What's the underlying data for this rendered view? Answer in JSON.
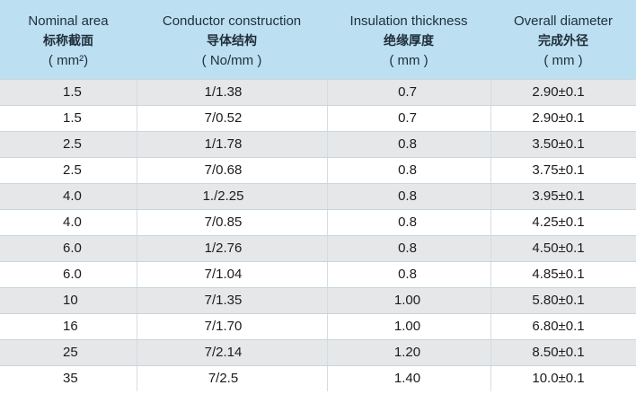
{
  "table": {
    "header": [
      {
        "en": "Nominal  area",
        "zh": "标称截面",
        "unit": "( mm²)"
      },
      {
        "en": "Conductor construction",
        "zh": "导体结构",
        "unit": "( No/mm )"
      },
      {
        "en": "Insulation thickness",
        "zh": "绝缘厚度",
        "unit": "( mm )"
      },
      {
        "en": "Overall diameter",
        "zh": "完成外径",
        "unit": "( mm )"
      }
    ],
    "rows": [
      [
        "1.5",
        "1/1.38",
        "0.7",
        "2.90±0.1"
      ],
      [
        "1.5",
        "7/0.52",
        "0.7",
        "2.90±0.1"
      ],
      [
        "2.5",
        "1/1.78",
        "0.8",
        "3.50±0.1"
      ],
      [
        "2.5",
        "7/0.68",
        "0.8",
        "3.75±0.1"
      ],
      [
        "4.0",
        "1./2.25",
        "0.8",
        "3.95±0.1"
      ],
      [
        "4.0",
        "7/0.85",
        "0.8",
        "4.25±0.1"
      ],
      [
        "6.0",
        "1/2.76",
        "0.8",
        "4.50±0.1"
      ],
      [
        "6.0",
        "7/1.04",
        "0.8",
        "4.85±0.1"
      ],
      [
        "10",
        "7/1.35",
        "1.00",
        "5.80±0.1"
      ],
      [
        "16",
        "7/1.70",
        "1.00",
        "6.80±0.1"
      ],
      [
        "25",
        "7/2.14",
        "1.20",
        "8.50±0.1"
      ],
      [
        "35",
        "7/2.5",
        "1.40",
        "10.0±0.1"
      ]
    ]
  },
  "colors": {
    "header_bg": "#bcdff2",
    "shaded_row_bg": "#e6e7e9",
    "plain_row_bg": "#ffffff"
  }
}
